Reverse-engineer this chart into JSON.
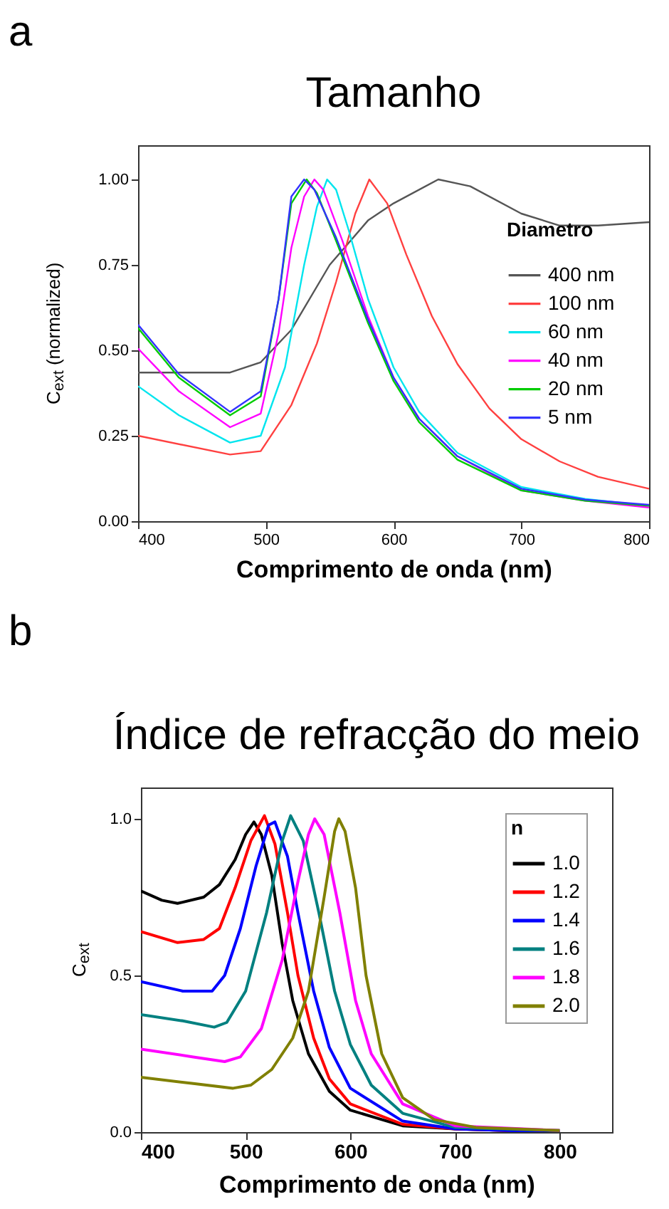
{
  "chart_data": [
    {
      "type": "line",
      "title": "Tamanho",
      "annotations": [
        "a"
      ],
      "xlabel": "Comprimento de onda (nm)",
      "ylabel": "C$_{ext}$ (normalized)",
      "xlim": [
        400,
        800
      ],
      "xticks": [
        400,
        500,
        600,
        700,
        800
      ],
      "ylim": [
        0,
        1.1
      ],
      "yticks": [
        {
          "value": 0,
          "label": "0.00"
        },
        {
          "value": 0.25,
          "label": "0.25"
        },
        {
          "value": 0.5,
          "label": "0.50"
        },
        {
          "value": 0.75,
          "label": "0.75"
        },
        {
          "value": 1,
          "label": "1.00"
        }
      ],
      "legend": "right",
      "legend_title": "Diametro",
      "series": [
        {
          "name": "400 nm",
          "color": "#555555",
          "x": [
            400,
            472,
            496,
            520,
            550,
            580,
            600,
            635,
            660,
            700,
            730,
            760,
            800
          ],
          "values": [
            0.435,
            0.435,
            0.465,
            0.56,
            0.75,
            0.88,
            0.93,
            1.0,
            0.98,
            0.9,
            0.865,
            0.865,
            0.875
          ]
        },
        {
          "name": "100 nm",
          "color": "#ff4040",
          "x": [
            400,
            472,
            496,
            520,
            540,
            555,
            570,
            581,
            595,
            610,
            630,
            650,
            675,
            700,
            730,
            760,
            800
          ],
          "values": [
            0.25,
            0.195,
            0.205,
            0.34,
            0.52,
            0.7,
            0.9,
            1.0,
            0.93,
            0.78,
            0.6,
            0.46,
            0.33,
            0.24,
            0.175,
            0.13,
            0.095
          ]
        },
        {
          "name": "60 nm",
          "color": "#00e5ee",
          "x": [
            400,
            432,
            472,
            496,
            515,
            530,
            540,
            548,
            555,
            565,
            580,
            600,
            620,
            650,
            700,
            750,
            800
          ],
          "values": [
            0.395,
            0.31,
            0.23,
            0.25,
            0.45,
            0.75,
            0.92,
            1.0,
            0.97,
            0.85,
            0.65,
            0.45,
            0.32,
            0.2,
            0.1,
            0.065,
            0.045
          ]
        },
        {
          "name": "40 nm",
          "color": "#ff00ff",
          "x": [
            400,
            432,
            472,
            496,
            510,
            520,
            530,
            538,
            545,
            560,
            580,
            600,
            620,
            650,
            700,
            750,
            800
          ],
          "values": [
            0.505,
            0.38,
            0.275,
            0.315,
            0.55,
            0.8,
            0.95,
            1.0,
            0.97,
            0.82,
            0.6,
            0.42,
            0.3,
            0.19,
            0.09,
            0.06,
            0.04
          ]
        },
        {
          "name": "20 nm",
          "color": "#00cc00",
          "x": [
            400,
            432,
            472,
            496,
            510,
            520,
            532,
            540,
            555,
            580,
            600,
            620,
            650,
            700,
            750,
            800
          ],
          "values": [
            0.565,
            0.42,
            0.31,
            0.365,
            0.65,
            0.93,
            1.0,
            0.96,
            0.82,
            0.58,
            0.41,
            0.29,
            0.18,
            0.09,
            0.06,
            0.045
          ]
        },
        {
          "name": "5 nm",
          "color": "#3333ff",
          "x": [
            400,
            432,
            472,
            496,
            510,
            520,
            530,
            538,
            555,
            580,
            600,
            620,
            650,
            700,
            750,
            800
          ],
          "values": [
            0.575,
            0.43,
            0.32,
            0.38,
            0.65,
            0.95,
            1.0,
            0.97,
            0.83,
            0.59,
            0.42,
            0.3,
            0.19,
            0.095,
            0.063,
            0.048
          ]
        }
      ]
    },
    {
      "type": "line",
      "title": "Índice de refracção do meio",
      "annotations": [
        "b"
      ],
      "xlabel": "Comprimento de onda (nm)",
      "ylabel": "C$_{ext}$",
      "xlim": [
        400,
        850
      ],
      "xticks": [
        400,
        500,
        600,
        700,
        800
      ],
      "ylim": [
        0,
        1.1
      ],
      "yticks": [
        {
          "value": 0,
          "label": "0.0"
        },
        {
          "value": 0.5,
          "label": "0.5"
        },
        {
          "value": 1,
          "label": "1.0"
        }
      ],
      "legend": "top right",
      "legend_title": "n",
      "series": [
        {
          "name": "1.0",
          "color": "#000000",
          "x": [
            400,
            420,
            435,
            460,
            475,
            490,
            500,
            508,
            515,
            525,
            535,
            545,
            560,
            580,
            600,
            650,
            700,
            800
          ],
          "values": [
            0.77,
            0.74,
            0.73,
            0.75,
            0.79,
            0.87,
            0.95,
            0.99,
            0.95,
            0.82,
            0.6,
            0.42,
            0.25,
            0.13,
            0.07,
            0.02,
            0.01,
            0.0
          ]
        },
        {
          "name": "1.2",
          "color": "#ff0000",
          "x": [
            400,
            435,
            460,
            475,
            490,
            505,
            518,
            528,
            540,
            550,
            565,
            580,
            600,
            650,
            700,
            800
          ],
          "values": [
            0.64,
            0.605,
            0.615,
            0.65,
            0.78,
            0.93,
            1.01,
            0.92,
            0.7,
            0.5,
            0.3,
            0.17,
            0.09,
            0.025,
            0.01,
            0.0
          ]
        },
        {
          "name": "1.4",
          "color": "#0000ff",
          "x": [
            400,
            440,
            468,
            480,
            495,
            510,
            522,
            528,
            540,
            550,
            565,
            580,
            600,
            650,
            700,
            800
          ],
          "values": [
            0.48,
            0.45,
            0.45,
            0.5,
            0.65,
            0.85,
            0.98,
            0.99,
            0.88,
            0.7,
            0.45,
            0.27,
            0.14,
            0.035,
            0.01,
            0.0
          ]
        },
        {
          "name": "1.6",
          "color": "#008080",
          "x": [
            400,
            440,
            470,
            482,
            500,
            520,
            535,
            543,
            555,
            570,
            585,
            600,
            620,
            650,
            700,
            800
          ],
          "values": [
            0.375,
            0.355,
            0.335,
            0.35,
            0.45,
            0.7,
            0.93,
            1.01,
            0.93,
            0.7,
            0.45,
            0.28,
            0.15,
            0.06,
            0.015,
            0.005
          ]
        },
        {
          "name": "1.8",
          "color": "#ff00ff",
          "x": [
            400,
            450,
            480,
            495,
            515,
            535,
            550,
            560,
            566,
            575,
            590,
            605,
            620,
            650,
            700,
            800
          ],
          "values": [
            0.265,
            0.24,
            0.225,
            0.24,
            0.33,
            0.55,
            0.8,
            0.95,
            1.0,
            0.95,
            0.7,
            0.42,
            0.25,
            0.09,
            0.02,
            0.005
          ]
        },
        {
          "name": "2.0",
          "color": "#808000",
          "x": [
            400,
            450,
            488,
            505,
            525,
            545,
            560,
            575,
            585,
            589,
            595,
            605,
            615,
            630,
            650,
            680,
            720,
            800
          ],
          "values": [
            0.175,
            0.155,
            0.14,
            0.15,
            0.2,
            0.3,
            0.45,
            0.75,
            0.96,
            1.0,
            0.96,
            0.78,
            0.5,
            0.25,
            0.11,
            0.04,
            0.015,
            0.005
          ]
        }
      ]
    }
  ]
}
